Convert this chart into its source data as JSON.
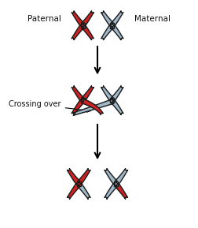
{
  "paternal_color": "#CC2222",
  "maternal_color": "#A0B8C8",
  "outline_color": "#1a1a1a",
  "background_color": "#ffffff",
  "text_color": "#111111",
  "label_paternal": "Paternal",
  "label_maternal": "Maternal",
  "label_crossing": "Crossing over",
  "figsize": [
    2.53,
    2.89
  ],
  "dpi": 100,
  "lw": 1.0
}
